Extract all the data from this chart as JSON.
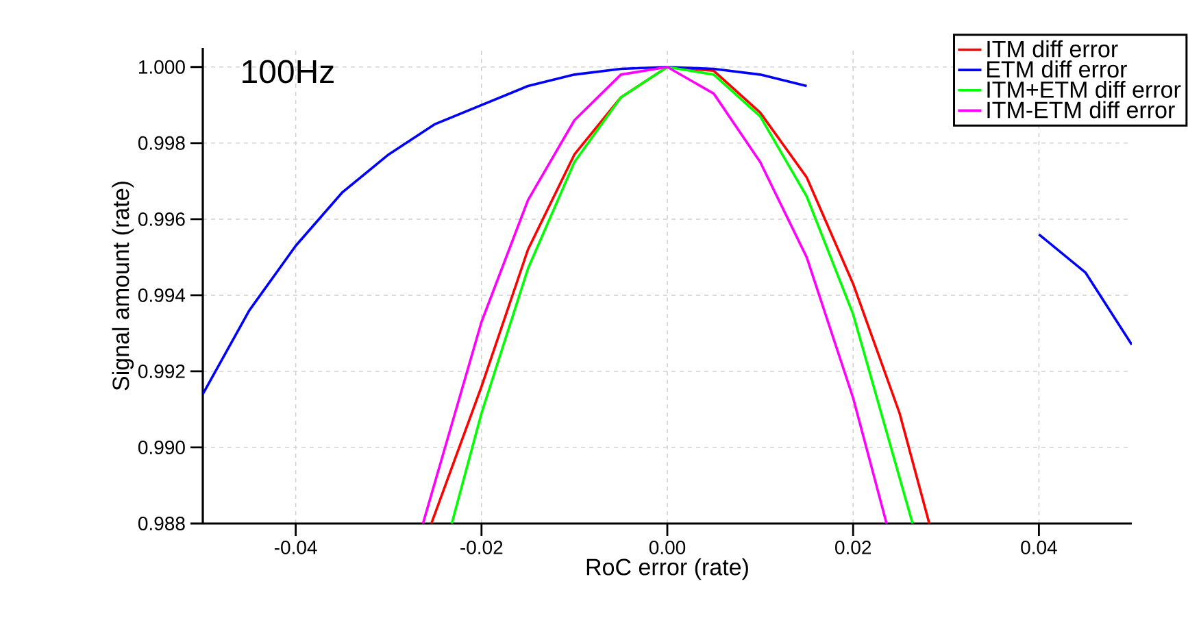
{
  "chart_data": {
    "type": "line",
    "xlabel": "RoC error (rate)",
    "ylabel": "Signal amount (rate)",
    "annotations": [
      "100Hz"
    ],
    "xlim": [
      -0.05,
      0.05
    ],
    "ylim": [
      0.988,
      1.0005
    ],
    "xticks": [
      {
        "value": -0.04,
        "label": "-0.04"
      },
      {
        "value": -0.02,
        "label": "-0.02"
      },
      {
        "value": 0,
        "label": "0.00"
      },
      {
        "value": 0.02,
        "label": "0.02"
      },
      {
        "value": 0.04,
        "label": "0.04"
      }
    ],
    "yticks": [
      {
        "value": 0.988,
        "label": "0.988"
      },
      {
        "value": 0.99,
        "label": "0.990"
      },
      {
        "value": 0.992,
        "label": "0.992"
      },
      {
        "value": 0.994,
        "label": "0.994"
      },
      {
        "value": 0.996,
        "label": "0.996"
      },
      {
        "value": 0.998,
        "label": "0.998"
      },
      {
        "value": 1.0,
        "label": "1.000"
      }
    ],
    "grid": true,
    "legend": "top right",
    "marker": "none",
    "line_style": "solid",
    "series": [
      {
        "name": "ITM diff error",
        "color": "#ff0000",
        "x": [
          -0.0254,
          -0.02,
          -0.015,
          -0.01,
          -0.005,
          0,
          0.005,
          0.01,
          0.015,
          0.02,
          0.025,
          0.0282
        ],
        "values": [
          0.988,
          0.9916,
          0.9952,
          0.9977,
          0.9992,
          1.0,
          0.9999,
          0.9988,
          0.9971,
          0.9943,
          0.9909,
          0.988
        ]
      },
      {
        "name": "ETM diff error",
        "color": "#0000ff",
        "x": [
          -0.05,
          -0.045,
          -0.04,
          -0.035,
          -0.03,
          -0.025,
          -0.02,
          -0.015,
          -0.01,
          -0.005,
          0,
          0.005,
          0.01,
          0.015,
          0.02,
          0.025,
          0.03,
          0.035,
          0.04,
          0.045,
          0.05
        ],
        "values": [
          0.9914,
          0.9936,
          0.9953,
          0.9967,
          0.9977,
          0.9985,
          0.999,
          0.9995,
          0.9998,
          0.99995,
          1.0,
          0.99995,
          0.9998,
          0.9995,
          null,
          null,
          null,
          null,
          0.9956,
          0.9946,
          0.9927
        ]
      },
      {
        "name": "ITM+ETM diff error",
        "color": "#00ff00",
        "x": [
          -0.0232,
          -0.02,
          -0.015,
          -0.01,
          -0.005,
          0,
          0.005,
          0.01,
          0.015,
          0.02,
          0.0264
        ],
        "values": [
          0.988,
          0.9909,
          0.9947,
          0.9975,
          0.9992,
          1.0,
          0.9998,
          0.9987,
          0.9966,
          0.9935,
          0.988
        ]
      },
      {
        "name": "ITM-ETM diff error",
        "color": "#ff00ff",
        "x": [
          -0.0263,
          -0.02,
          -0.015,
          -0.01,
          -0.005,
          0,
          0.005,
          0.01,
          0.015,
          0.02,
          0.0236
        ],
        "values": [
          0.988,
          0.9933,
          0.9965,
          0.9986,
          0.9998,
          1.0,
          0.9993,
          0.9975,
          0.995,
          0.9913,
          0.988
        ]
      }
    ]
  }
}
